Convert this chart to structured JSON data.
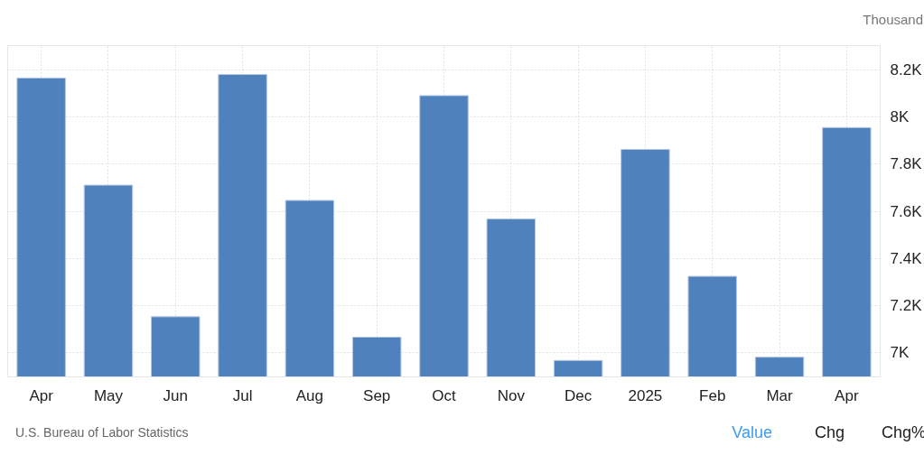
{
  "chart_data": {
    "type": "bar",
    "categories": [
      "Apr",
      "May",
      "Jun",
      "Jul",
      "Aug",
      "Sep",
      "Oct",
      "Nov",
      "Dec",
      "2025",
      "Feb",
      "Mar",
      "Apr"
    ],
    "values": [
      8167,
      7711,
      7151,
      8182,
      7646,
      7064,
      8092,
      7567,
      6965,
      7863,
      7323,
      6979,
      7956
    ],
    "color": "#4f81bd",
    "ylabel": "Thousand",
    "ylim": [
      6895,
      8305
    ],
    "yticks": [
      {
        "value": 7000,
        "label": "7K"
      },
      {
        "value": 7200,
        "label": "7.2K"
      },
      {
        "value": 7400,
        "label": "7.4K"
      },
      {
        "value": 7600,
        "label": "7.6K"
      },
      {
        "value": 7800,
        "label": "7.8K"
      },
      {
        "value": 8000,
        "label": "8K"
      },
      {
        "value": 8200,
        "label": "8.2K"
      }
    ],
    "grid": true,
    "annotations": [
      "U.S. Bureau of Labor Statistics",
      "Value",
      "Chg",
      "Chg%"
    ]
  }
}
